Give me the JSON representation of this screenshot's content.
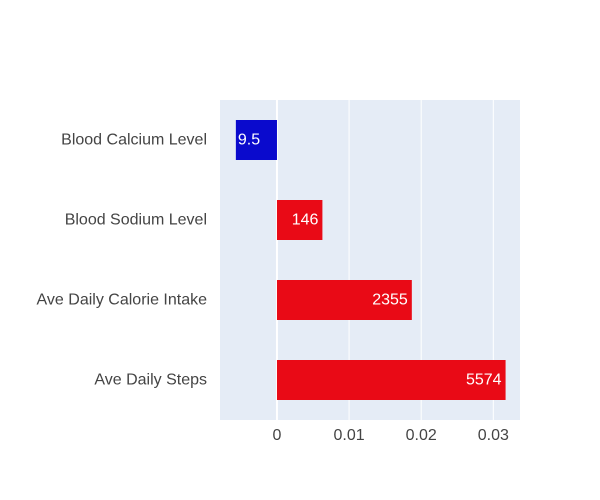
{
  "chart_data": {
    "type": "bar",
    "orientation": "horizontal",
    "categories": [
      "Blood Calcium Level",
      "Blood Sodium Level",
      "Ave Daily Calorie Intake",
      "Ave Daily Steps"
    ],
    "values": [
      -0.0057,
      0.0063,
      0.0187,
      0.0317
    ],
    "data_labels": [
      "9.5",
      "146",
      "2355",
      "5574"
    ],
    "bar_colors": [
      "#0a0acd",
      "#e90a16",
      "#e90a16",
      "#e90a16"
    ],
    "xlim": [
      -0.0079,
      0.0337
    ],
    "x_ticks": [
      0,
      0.01,
      0.02,
      0.03
    ],
    "x_tick_labels": [
      "0",
      "0.01",
      "0.02",
      "0.03"
    ],
    "grid": true,
    "background_color": "#e5ecf6",
    "title": "",
    "xlabel": "",
    "ylabel": ""
  }
}
